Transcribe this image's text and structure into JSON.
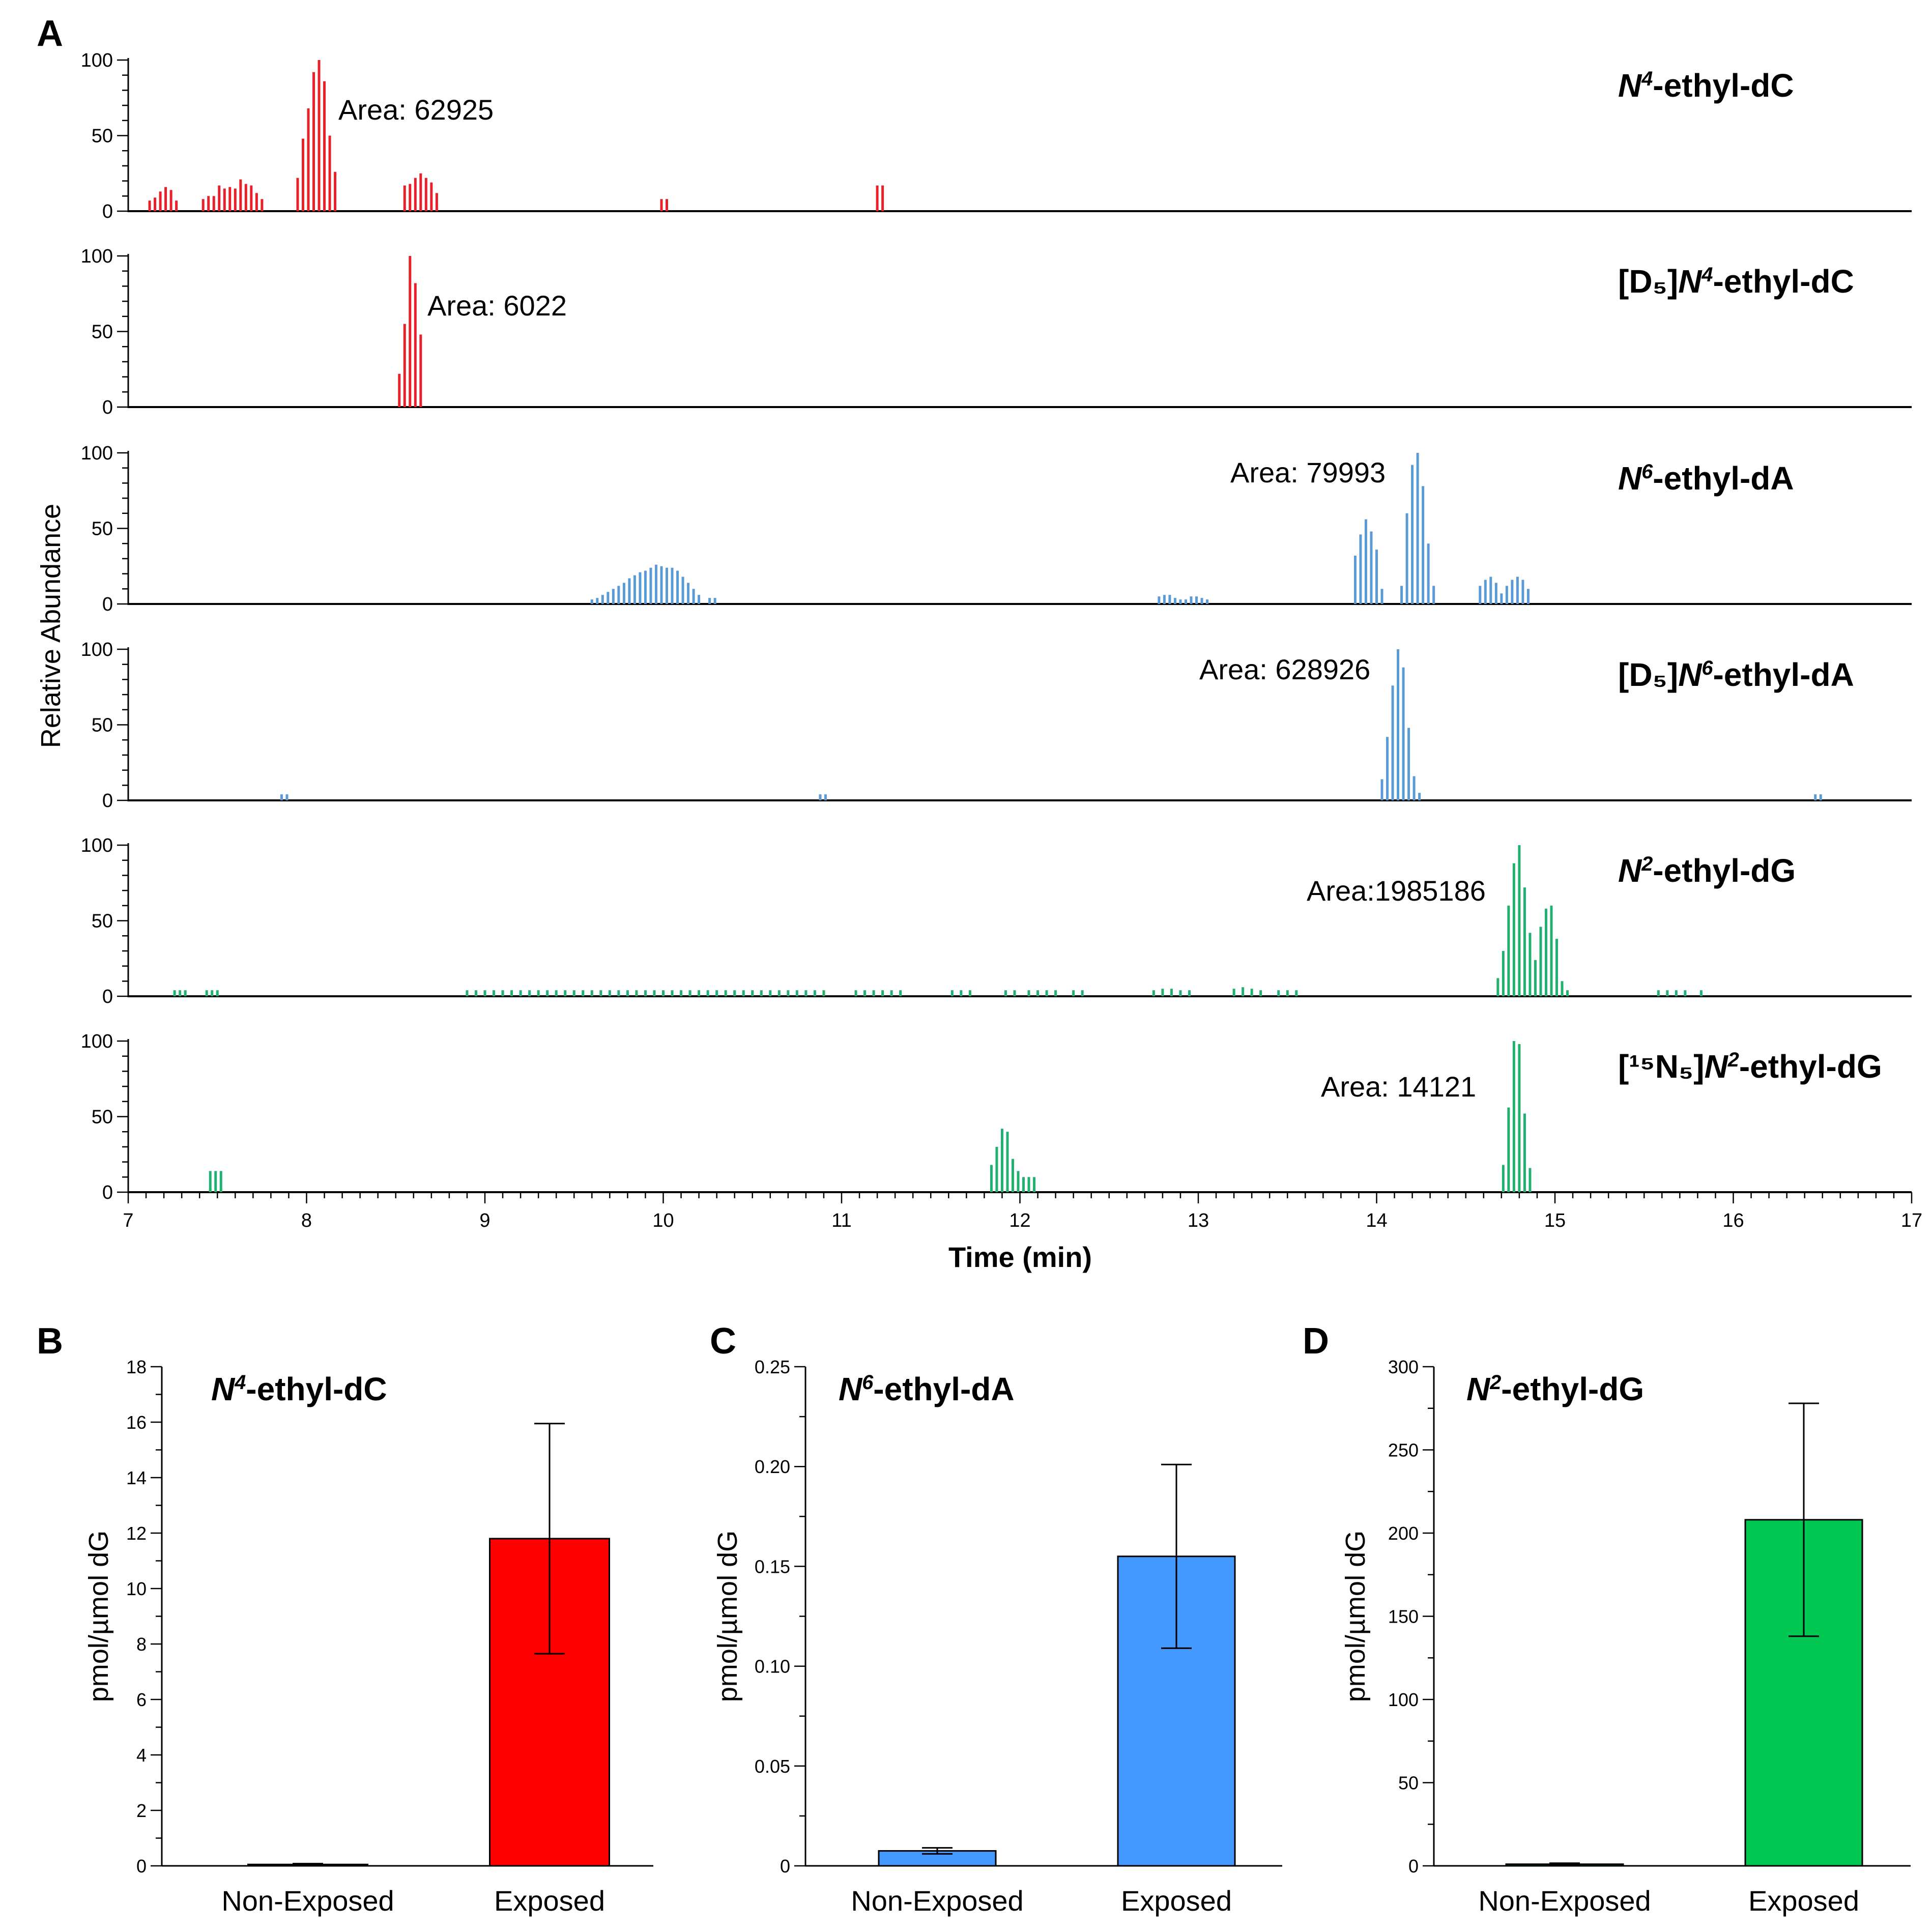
{
  "chart_data": [
    {
      "panel": "A",
      "type": "bar",
      "description_type": "stacked extracted-ion chromatograms",
      "ylabel": "Relative Abundance",
      "xlabel": "Time (min)",
      "xlim": [
        7,
        17
      ],
      "x_ticks": [
        "7",
        "8",
        "9",
        "10",
        "11",
        "12",
        "13",
        "14",
        "15",
        "16",
        "17"
      ],
      "y_ticks": [
        "0",
        "50",
        "100"
      ],
      "ylim": [
        0,
        100
      ],
      "traces": [
        {
          "name_prefix": "",
          "name_italic": "N",
          "name_sup": "4",
          "name_rest": "-ethyl-dC",
          "area_label": "Area: 62925",
          "color": "#e8202a",
          "points": [
            [
              7.12,
              7
            ],
            [
              7.15,
              9
            ],
            [
              7.18,
              13
            ],
            [
              7.21,
              16
            ],
            [
              7.24,
              14
            ],
            [
              7.27,
              7
            ],
            [
              7.42,
              8
            ],
            [
              7.45,
              10
            ],
            [
              7.48,
              10
            ],
            [
              7.51,
              17
            ],
            [
              7.54,
              15
            ],
            [
              7.57,
              16
            ],
            [
              7.6,
              15
            ],
            [
              7.63,
              21
            ],
            [
              7.66,
              18
            ],
            [
              7.69,
              17
            ],
            [
              7.72,
              12
            ],
            [
              7.75,
              8
            ],
            [
              7.95,
              22
            ],
            [
              7.98,
              48
            ],
            [
              8.01,
              68
            ],
            [
              8.04,
              92
            ],
            [
              8.07,
              100
            ],
            [
              8.1,
              86
            ],
            [
              8.13,
              50
            ],
            [
              8.16,
              26
            ],
            [
              8.55,
              17
            ],
            [
              8.58,
              18
            ],
            [
              8.61,
              22
            ],
            [
              8.64,
              25
            ],
            [
              8.67,
              22
            ],
            [
              8.7,
              19
            ],
            [
              8.73,
              12
            ],
            [
              9.99,
              8
            ],
            [
              10.02,
              8
            ],
            [
              11.2,
              17
            ],
            [
              11.23,
              17
            ]
          ]
        },
        {
          "name_prefix": "[D₅]",
          "name_italic": "N",
          "name_sup": "4",
          "name_rest": "-ethyl-dC",
          "area_label": "Area: 6022",
          "color": "#e8202a",
          "points": [
            [
              8.52,
              22
            ],
            [
              8.55,
              55
            ],
            [
              8.58,
              100
            ],
            [
              8.61,
              82
            ],
            [
              8.64,
              48
            ]
          ]
        },
        {
          "name_prefix": "",
          "name_italic": "N",
          "name_sup": "6",
          "name_rest": "-ethyl-dA",
          "area_label": "Area: 79993",
          "color": "#5b9bd5",
          "points": [
            [
              9.6,
              3
            ],
            [
              9.63,
              4
            ],
            [
              9.66,
              6
            ],
            [
              9.69,
              8
            ],
            [
              9.72,
              10
            ],
            [
              9.75,
              12
            ],
            [
              9.78,
              14
            ],
            [
              9.81,
              17
            ],
            [
              9.84,
              19
            ],
            [
              9.87,
              21
            ],
            [
              9.9,
              22
            ],
            [
              9.93,
              24
            ],
            [
              9.96,
              26
            ],
            [
              9.99,
              25
            ],
            [
              10.02,
              24
            ],
            [
              10.05,
              24
            ],
            [
              10.08,
              22
            ],
            [
              10.11,
              18
            ],
            [
              10.14,
              14
            ],
            [
              10.17,
              10
            ],
            [
              10.2,
              6
            ],
            [
              10.26,
              4
            ],
            [
              10.29,
              4
            ],
            [
              12.78,
              5
            ],
            [
              12.81,
              6
            ],
            [
              12.84,
              6
            ],
            [
              12.87,
              4
            ],
            [
              12.9,
              3
            ],
            [
              12.93,
              3
            ],
            [
              12.96,
              5
            ],
            [
              12.99,
              5
            ],
            [
              13.02,
              4
            ],
            [
              13.05,
              3
            ],
            [
              13.88,
              32
            ],
            [
              13.91,
              46
            ],
            [
              13.94,
              56
            ],
            [
              13.97,
              48
            ],
            [
              14.0,
              36
            ],
            [
              14.03,
              10
            ],
            [
              14.14,
              12
            ],
            [
              14.17,
              60
            ],
            [
              14.2,
              92
            ],
            [
              14.23,
              100
            ],
            [
              14.26,
              78
            ],
            [
              14.29,
              40
            ],
            [
              14.32,
              12
            ],
            [
              14.58,
              12
            ],
            [
              14.61,
              16
            ],
            [
              14.64,
              18
            ],
            [
              14.67,
              14
            ],
            [
              14.7,
              7
            ],
            [
              14.73,
              12
            ],
            [
              14.76,
              16
            ],
            [
              14.79,
              18
            ],
            [
              14.82,
              16
            ],
            [
              14.85,
              10
            ]
          ]
        },
        {
          "name_prefix": "[D₅]",
          "name_italic": "N",
          "name_sup": "6",
          "name_rest": "-ethyl-dA",
          "area_label": "Area: 628926",
          "color": "#5b9bd5",
          "points": [
            [
              7.86,
              4
            ],
            [
              7.89,
              4
            ],
            [
              10.88,
              4
            ],
            [
              10.91,
              4
            ],
            [
              14.03,
              14
            ],
            [
              14.06,
              42
            ],
            [
              14.09,
              76
            ],
            [
              14.12,
              100
            ],
            [
              14.15,
              88
            ],
            [
              14.18,
              48
            ],
            [
              14.21,
              16
            ],
            [
              14.24,
              5
            ],
            [
              16.46,
              4
            ],
            [
              16.49,
              4
            ]
          ]
        },
        {
          "name_prefix": "",
          "name_italic": "N",
          "name_sup": "2",
          "name_rest": "-ethyl-dG",
          "area_label": "Area:1985186",
          "color": "#20b070",
          "points": [
            [
              7.26,
              4
            ],
            [
              7.29,
              4
            ],
            [
              7.32,
              4
            ],
            [
              7.44,
              4
            ],
            [
              7.47,
              4
            ],
            [
              7.5,
              4
            ],
            [
              8.9,
              4
            ],
            [
              8.95,
              4
            ],
            [
              9.0,
              4
            ],
            [
              9.05,
              4
            ],
            [
              9.1,
              4
            ],
            [
              9.15,
              4
            ],
            [
              9.2,
              4
            ],
            [
              9.25,
              4
            ],
            [
              9.3,
              4
            ],
            [
              9.35,
              4
            ],
            [
              9.4,
              4
            ],
            [
              9.45,
              4
            ],
            [
              9.5,
              4
            ],
            [
              9.55,
              4
            ],
            [
              9.6,
              4
            ],
            [
              9.65,
              4
            ],
            [
              9.7,
              4
            ],
            [
              9.75,
              4
            ],
            [
              9.8,
              4
            ],
            [
              9.85,
              4
            ],
            [
              9.9,
              4
            ],
            [
              9.95,
              4
            ],
            [
              10.0,
              4
            ],
            [
              10.05,
              4
            ],
            [
              10.1,
              4
            ],
            [
              10.15,
              4
            ],
            [
              10.2,
              4
            ],
            [
              10.25,
              4
            ],
            [
              10.3,
              4
            ],
            [
              10.35,
              4
            ],
            [
              10.4,
              4
            ],
            [
              10.45,
              4
            ],
            [
              10.5,
              4
            ],
            [
              10.55,
              4
            ],
            [
              10.6,
              4
            ],
            [
              10.65,
              4
            ],
            [
              10.7,
              4
            ],
            [
              10.75,
              4
            ],
            [
              10.8,
              4
            ],
            [
              10.85,
              4
            ],
            [
              10.9,
              4
            ],
            [
              11.08,
              4
            ],
            [
              11.13,
              4
            ],
            [
              11.18,
              4
            ],
            [
              11.23,
              4
            ],
            [
              11.28,
              4
            ],
            [
              11.33,
              4
            ],
            [
              11.62,
              4
            ],
            [
              11.67,
              4
            ],
            [
              11.72,
              4
            ],
            [
              11.92,
              4
            ],
            [
              11.97,
              4
            ],
            [
              12.05,
              4
            ],
            [
              12.1,
              4
            ],
            [
              12.15,
              4
            ],
            [
              12.2,
              4
            ],
            [
              12.3,
              4
            ],
            [
              12.35,
              4
            ],
            [
              12.75,
              4
            ],
            [
              12.8,
              5
            ],
            [
              12.85,
              5
            ],
            [
              12.9,
              4
            ],
            [
              12.95,
              4
            ],
            [
              13.2,
              5
            ],
            [
              13.25,
              6
            ],
            [
              13.3,
              5
            ],
            [
              13.35,
              4
            ],
            [
              13.45,
              4
            ],
            [
              13.5,
              4
            ],
            [
              13.55,
              4
            ],
            [
              14.68,
              12
            ],
            [
              14.71,
              30
            ],
            [
              14.74,
              60
            ],
            [
              14.77,
              88
            ],
            [
              14.8,
              100
            ],
            [
              14.83,
              72
            ],
            [
              14.86,
              42
            ],
            [
              14.89,
              24
            ],
            [
              14.92,
              46
            ],
            [
              14.95,
              58
            ],
            [
              14.98,
              60
            ],
            [
              15.01,
              38
            ],
            [
              15.04,
              10
            ],
            [
              15.07,
              4
            ],
            [
              15.58,
              4
            ],
            [
              15.63,
              4
            ],
            [
              15.68,
              4
            ],
            [
              15.73,
              4
            ],
            [
              15.82,
              4
            ]
          ]
        },
        {
          "name_prefix": "[¹⁵N₅]",
          "name_italic": "N",
          "name_sup": "2",
          "name_rest": "-ethyl-dG",
          "area_label": "Area: 14121",
          "color": "#20b070",
          "points": [
            [
              7.46,
              14
            ],
            [
              7.49,
              14
            ],
            [
              7.52,
              14
            ],
            [
              11.84,
              18
            ],
            [
              11.87,
              30
            ],
            [
              11.9,
              42
            ],
            [
              11.93,
              40
            ],
            [
              11.96,
              22
            ],
            [
              11.99,
              14
            ],
            [
              12.02,
              10
            ],
            [
              12.05,
              10
            ],
            [
              12.08,
              10
            ],
            [
              14.71,
              18
            ],
            [
              14.74,
              56
            ],
            [
              14.77,
              100
            ],
            [
              14.8,
              98
            ],
            [
              14.83,
              52
            ],
            [
              14.86,
              16
            ]
          ]
        }
      ]
    },
    {
      "panel": "B",
      "type": "bar",
      "title_italic": "N",
      "title_sup": "4",
      "title_rest": "-ethyl-dC",
      "categories": [
        "Non-Exposed",
        "Exposed"
      ],
      "values": [
        0.05,
        11.8
      ],
      "errors": [
        0.03,
        4.15
      ],
      "ylabel": "pmol/µmol dG",
      "ylim": [
        0,
        18
      ],
      "y_ticks": [
        "0",
        "2",
        "4",
        "6",
        "8",
        "10",
        "12",
        "14",
        "16",
        "18"
      ],
      "color": "#ff0000"
    },
    {
      "panel": "C",
      "type": "bar",
      "title_italic": "N",
      "title_sup": "6",
      "title_rest": "-ethyl-dA",
      "categories": [
        "Non-Exposed",
        "Exposed"
      ],
      "values": [
        0.0075,
        0.155
      ],
      "errors": [
        0.0015,
        0.046
      ],
      "ylabel": "pmol/µmol dG",
      "ylim": [
        0,
        0.25
      ],
      "y_ticks": [
        "0",
        "0.05",
        "0.10",
        "0.15",
        "0.20",
        "0.25"
      ],
      "color": "#4499ff"
    },
    {
      "panel": "D",
      "type": "bar",
      "title_italic": "N",
      "title_sup": "2",
      "title_rest": "-ethyl-dG",
      "categories": [
        "Non-Exposed",
        "Exposed"
      ],
      "values": [
        1.0,
        208
      ],
      "errors": [
        0.6,
        70
      ],
      "ylabel": "pmol/µmol dG",
      "ylim": [
        0,
        300
      ],
      "y_ticks": [
        "0",
        "50",
        "100",
        "150",
        "200",
        "250",
        "300"
      ],
      "color": "#00c853"
    }
  ]
}
